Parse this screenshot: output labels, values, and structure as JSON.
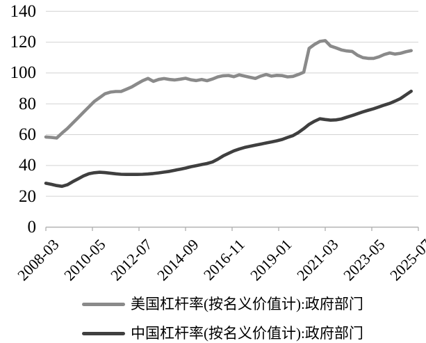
{
  "chart_data": {
    "type": "line",
    "title": "",
    "xlabel": "",
    "ylabel": "",
    "ylim": [
      0,
      140
    ],
    "y_ticks": [
      0,
      20,
      40,
      60,
      80,
      100,
      120,
      140
    ],
    "x_tick_labels": [
      "2008-03",
      "2010-05",
      "2012-07",
      "2014-09",
      "2016-11",
      "2019-01",
      "2021-03",
      "2023-05",
      "2025-07"
    ],
    "x_tick_month_index": [
      0,
      26,
      52,
      78,
      104,
      130,
      156,
      182,
      208
    ],
    "x_start": "2008-03",
    "x_end": "2025-03",
    "x_step_months": 3,
    "grid": "horizontal",
    "legend_position": "bottom-left",
    "series": [
      {
        "name": "美国杠杆率(按名义价值计):政府部门",
        "color": "#8a8a8a",
        "values": [
          58.5,
          58.2,
          57.8,
          61,
          64,
          67.5,
          71,
          74.5,
          78,
          81.5,
          84,
          86.5,
          87.6,
          88,
          88,
          89.5,
          91,
          93,
          95,
          96.5,
          94.6,
          95.8,
          96.4,
          95.8,
          95.5,
          96,
          96.6,
          95.6,
          95.1,
          95.8,
          95,
          96.1,
          97.5,
          98.2,
          98.4,
          97.6,
          98.8,
          98,
          97.2,
          96.5,
          98,
          99,
          98,
          98.5,
          98.3,
          97.5,
          97.8,
          99,
          100.5,
          116,
          118.5,
          120.5,
          121,
          117.5,
          116.3,
          115,
          114.3,
          114,
          111.5,
          110,
          109.5,
          109.5,
          110.5,
          112,
          113,
          112.3,
          112.8,
          113.8,
          114.5
        ]
      },
      {
        "name": "中国杠杆率(按名义价值计):政府部门",
        "color": "#3f3f3f",
        "values": [
          28.5,
          27.8,
          27,
          26.5,
          27.5,
          29.5,
          31.3,
          33.2,
          34.6,
          35.3,
          35.6,
          35.4,
          35,
          34.6,
          34.3,
          34.2,
          34.2,
          34.2,
          34.3,
          34.5,
          34.8,
          35.2,
          35.7,
          36.2,
          36.9,
          37.6,
          38.3,
          39.2,
          39.9,
          40.6,
          41.3,
          42.3,
          44.1,
          46.2,
          47.9,
          49.5,
          50.7,
          51.7,
          52.5,
          53.2,
          53.9,
          54.6,
          55.3,
          56,
          56.9,
          58.2,
          59.4,
          61.4,
          63.9,
          66.7,
          68.7,
          70.3,
          69.8,
          69.4,
          69.6,
          70.2,
          71.3,
          72.4,
          73.6,
          74.8,
          75.8,
          76.8,
          78,
          79.2,
          80.3,
          81.8,
          83.4,
          85.8,
          88.2
        ]
      }
    ],
    "colors": {
      "gridline": "#d2d2d2",
      "axis": "#b3b3b3",
      "label": "#000000",
      "background": "#ffffff"
    }
  }
}
